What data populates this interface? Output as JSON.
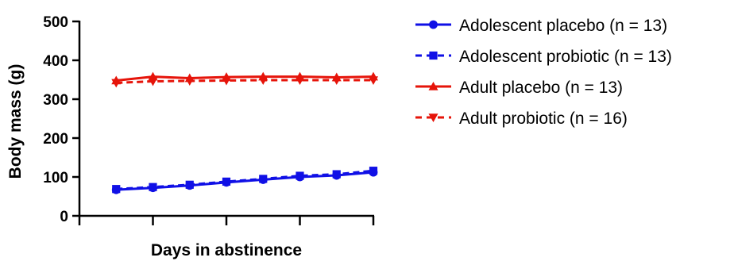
{
  "chart_data": {
    "type": "line",
    "xlabel": "Days in abstinence",
    "ylabel": "Body mass (g)",
    "ylim": [
      0,
      500
    ],
    "yticks": [
      0,
      100,
      200,
      300,
      400,
      500
    ],
    "x": [
      1,
      2,
      3,
      4,
      5,
      6,
      7,
      8
    ],
    "xlim": [
      0,
      8
    ],
    "xtick_labels_shown": false,
    "grid": false,
    "legend_position": "right",
    "series": [
      {
        "name": "Adolescent placebo (n = 13)",
        "color": "#1010e6",
        "line": "solid",
        "marker": "circle",
        "values": [
          67,
          72,
          78,
          86,
          93,
          100,
          104,
          112
        ]
      },
      {
        "name": "Adolescent probiotic (n = 13)",
        "color": "#1010e6",
        "line": "dashed",
        "marker": "square",
        "values": [
          69,
          74,
          80,
          88,
          95,
          103,
          107,
          116
        ]
      },
      {
        "name": "Adult placebo (n = 13)",
        "color": "#e6140a",
        "line": "solid",
        "marker": "triangle-up",
        "values": [
          348,
          358,
          354,
          357,
          358,
          358,
          356,
          358
        ]
      },
      {
        "name": "Adult probiotic (n = 16)",
        "color": "#e6140a",
        "line": "dashed",
        "marker": "triangle-down",
        "values": [
          342,
          346,
          347,
          348,
          349,
          349,
          349,
          349
        ]
      }
    ]
  }
}
